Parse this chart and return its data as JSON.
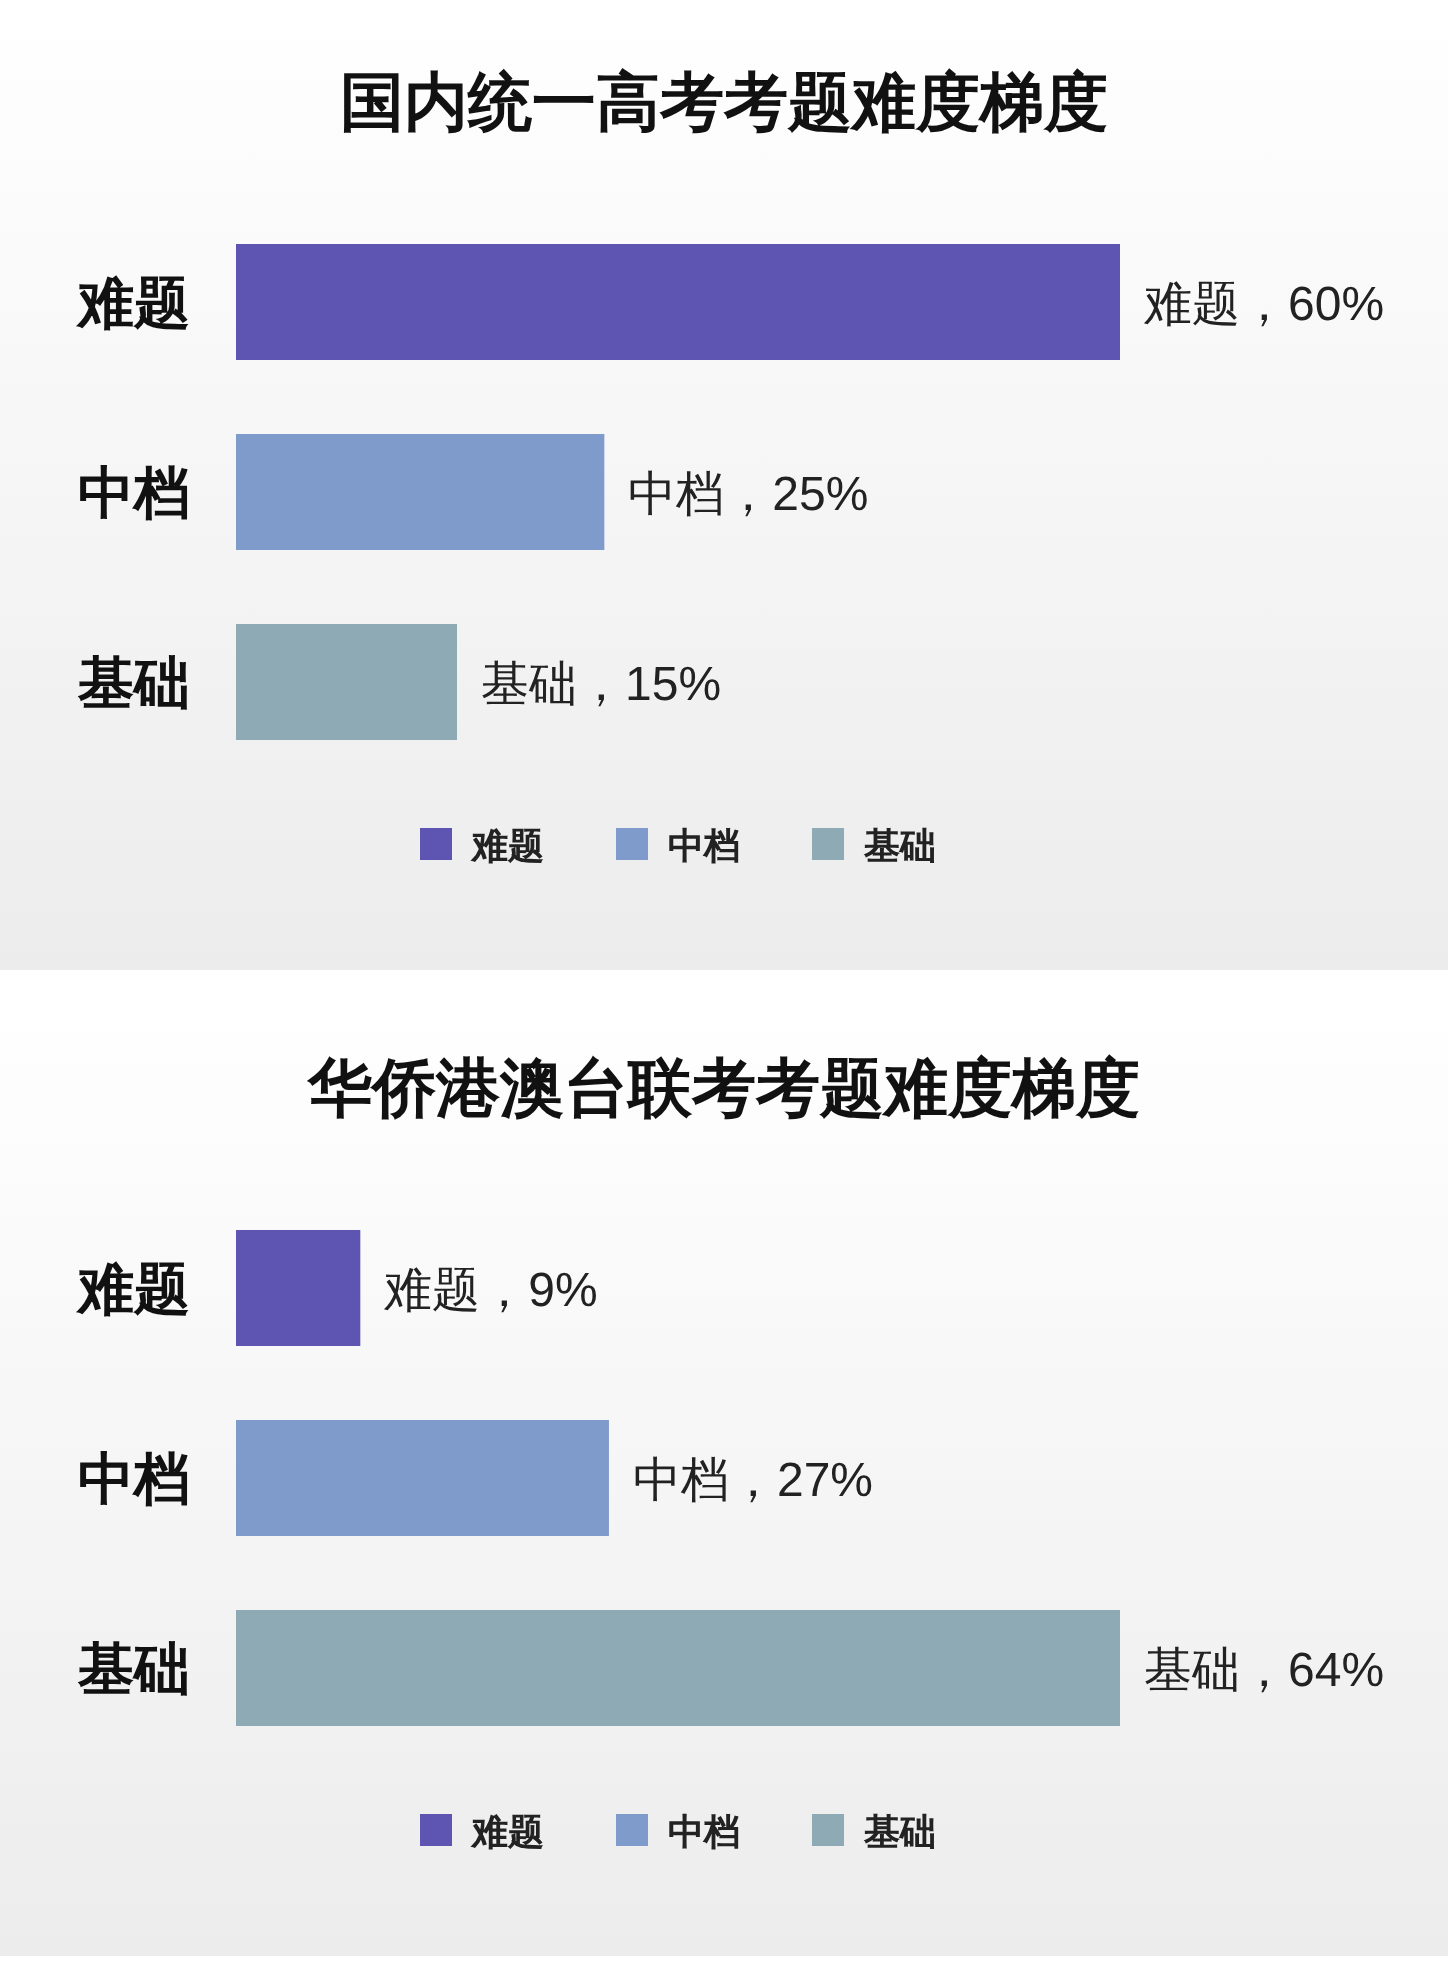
{
  "chart_data": [
    {
      "type": "bar",
      "orientation": "horizontal",
      "title": "国内统一高考考题难度梯度",
      "categories": [
        "难题",
        "中档",
        "基础"
      ],
      "legend": "bottom",
      "series": [
        {
          "name": "难题",
          "color": "#5e55b2",
          "values": [
            60,
            null,
            null
          ],
          "value_labels": [
            "难题，60%",
            null,
            null
          ]
        },
        {
          "name": "中档",
          "color": "#7f9bcb",
          "values": [
            null,
            25,
            null
          ],
          "value_labels": [
            null,
            "中档，25%",
            null
          ]
        },
        {
          "name": "基础",
          "color": "#8eaab5",
          "values": [
            null,
            null,
            15
          ],
          "value_labels": [
            null,
            null,
            "基础，15%"
          ]
        }
      ]
    },
    {
      "type": "bar",
      "orientation": "horizontal",
      "title": "华侨港澳台联考考题难度梯度",
      "categories": [
        "难题",
        "中档",
        "基础"
      ],
      "legend": "bottom",
      "series": [
        {
          "name": "难题",
          "color": "#5e55b2",
          "values": [
            9,
            null,
            null
          ],
          "value_labels": [
            "难题，9%",
            null,
            null
          ]
        },
        {
          "name": "中档",
          "color": "#7f9bcb",
          "values": [
            null,
            27,
            null
          ],
          "value_labels": [
            null,
            "中档，27%",
            null
          ]
        },
        {
          "name": "基础",
          "color": "#8eaab5",
          "values": [
            null,
            null,
            64
          ],
          "value_labels": [
            null,
            null,
            "基础，64%"
          ]
        }
      ]
    }
  ]
}
